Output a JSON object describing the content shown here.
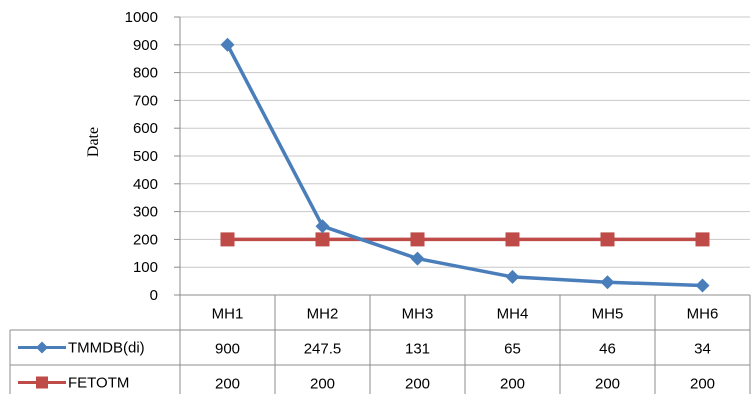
{
  "chart_data": {
    "type": "line",
    "categories": [
      "MH1",
      "MH2",
      "MH3",
      "MH4",
      "MH5",
      "MH6"
    ],
    "ylabel": "Date",
    "ylim": [
      0,
      1000
    ],
    "yticks": [
      0,
      100,
      200,
      300,
      400,
      500,
      600,
      700,
      800,
      900,
      1000
    ],
    "grid": true,
    "legend": "data-table-rows",
    "series": [
      {
        "name": "TMMDB(di)",
        "values": [
          900,
          247.5,
          131,
          65,
          46,
          34
        ],
        "labels": [
          "900",
          "247.5",
          "131",
          "65",
          "46",
          "34"
        ],
        "color": "#4a7ebb",
        "marker": "diamond"
      },
      {
        "name": "FETOTM",
        "values": [
          200,
          200,
          200,
          200,
          200,
          200
        ],
        "labels": [
          "200",
          "200",
          "200",
          "200",
          "200",
          "200"
        ],
        "color": "#be4b48",
        "marker": "square"
      }
    ]
  }
}
